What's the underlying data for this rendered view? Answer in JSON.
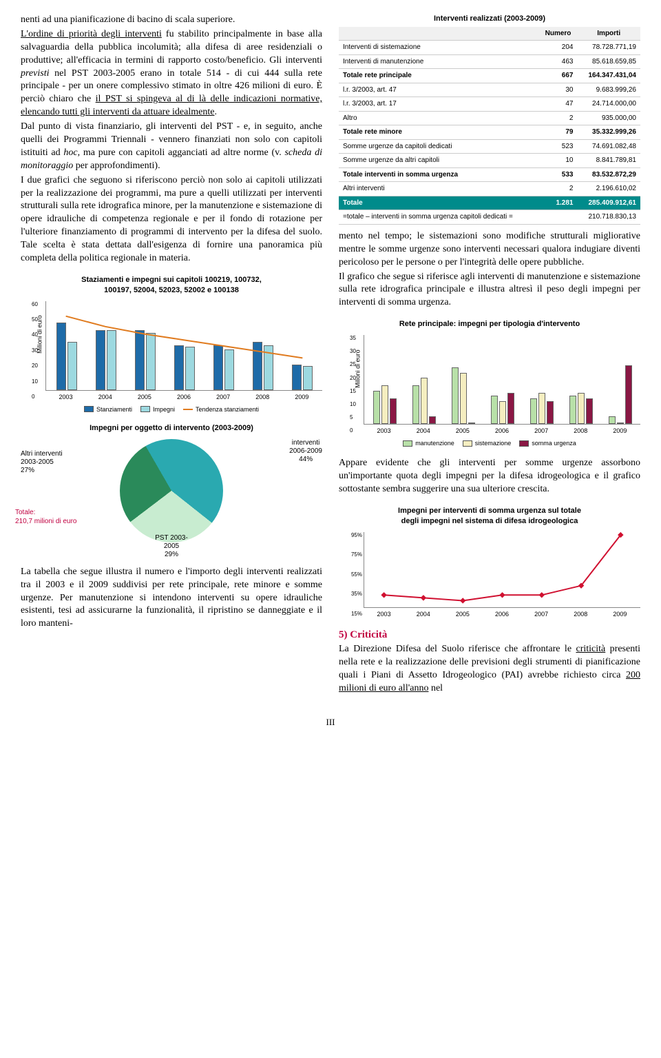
{
  "leftText": {
    "p1a": "nenti ad una pianificazione di bacino di scala superiore.",
    "p1b": "L'ordine di priorità degli interventi",
    "p1c": " fu stabilito principalmente in base alla salvaguardia della pubblica incolumità; alla difesa di aree residenziali o produttive; all'efficacia in termini di rapporto costo/beneficio. Gli interventi ",
    "p1d": "previsti",
    "p1e": " nel PST 2003-2005 erano in totale 514 - di cui 444 sulla rete principale - per un onere complessivo stimato in oltre 426 milioni di euro. È perciò chiaro che ",
    "p1f": "il PST si spingeva al di là delle indicazioni normative, elencando tutti gli interventi da attuare idealmente",
    "p1g": ".",
    "p2a": "Dal punto di vista finanziario, gli interventi del PST - e, in seguito, anche quelli dei Programmi Triennali - vennero finanziati non solo con capitoli istituiti ad ",
    "p2b": "hoc",
    "p2c": ", ma pure con capitoli agganciati ad altre norme (v. ",
    "p2d": "scheda di monitoraggio",
    "p2e": " per approfondimenti).",
    "p3": "I due grafici che seguono si riferiscono perciò non solo ai capitoli utilizzati per la realizzazione dei programmi, ma pure a quelli utilizzati per interventi strutturali sulla rete idrografica minore, per la manutenzione e sistemazione di opere idrauliche di competenza regionale e per il fondo di rotazione per l'ulteriore finanziamento di programmi di intervento per la difesa del suolo. Tale scelta è stata dettata dall'esigenza di fornire una panoramica più completa della politica regionale in materia.",
    "p4": "La tabella che segue illustra il numero e l'importo degli interventi realizzati tra il 2003 e il 2009 suddivisi per rete principale, rete minore e somme urgenze. Per manutenzione si intendono interventi su opere idrauliche esistenti, tesi ad assicurarne la funzionalità, il ripristino se danneggiate e il loro manteni-"
  },
  "chart1": {
    "title_l1": "Staziamenti e impegni sui capitoli 100219, 100732,",
    "title_l2": "100197, 52004, 52023, 52002 e 100138",
    "ylabel": "Milioni di euro",
    "ymax": 60,
    "yticks": [
      "0",
      "10",
      "20",
      "30",
      "40",
      "50",
      "60"
    ],
    "years": [
      "2003",
      "2004",
      "2005",
      "2006",
      "2007",
      "2008",
      "2009"
    ],
    "stanziamenti": [
      45,
      40,
      40,
      30,
      30,
      32,
      17
    ],
    "impegni": [
      32,
      40,
      38,
      29,
      27,
      30,
      16
    ],
    "trend": [
      50,
      43,
      38,
      34,
      30,
      26,
      22
    ],
    "colors": {
      "stanziamenti": "#1e6ba8",
      "impegni": "#9dd9e0",
      "trend": "#e07b1f"
    },
    "legend": {
      "a": "Stanziamenti",
      "b": "Impegni",
      "c": "Tendenza stanziamenti"
    }
  },
  "pie": {
    "title": "Impegni per oggetto di intervento (2003-2009)",
    "slices": [
      {
        "label_l1": "interventi",
        "label_l2": "2006-2009",
        "pct": "44%",
        "color": "#2aa9b0"
      },
      {
        "label_l1": "PST 2003-",
        "label_l2": "2005",
        "pct": "29%",
        "color": "#c8ecd0"
      },
      {
        "label_l1": "Altri interventi",
        "label_l2": "2003-2005",
        "pct": "27%",
        "color": "#2a8a5a"
      }
    ],
    "totale_l1": "Totale:",
    "totale_l2": "210,7 milioni di euro"
  },
  "table": {
    "caption": "Interventi realizzati (2003-2009)",
    "headers": [
      "",
      "Numero",
      "Importi"
    ],
    "rows": [
      {
        "cells": [
          "Interventi di sistemazione",
          "204",
          "78.728.771,19"
        ],
        "cls": ""
      },
      {
        "cells": [
          "Interventi di manutenzione",
          "463",
          "85.618.659,85"
        ],
        "cls": ""
      },
      {
        "cells": [
          "Totale rete principale",
          "667",
          "164.347.431,04"
        ],
        "cls": "bold"
      },
      {
        "cells": [
          "l.r. 3/2003, art. 47",
          "30",
          "9.683.999,26"
        ],
        "cls": ""
      },
      {
        "cells": [
          "l.r. 3/2003, art. 17",
          "47",
          "24.714.000,00"
        ],
        "cls": ""
      },
      {
        "cells": [
          "Altro",
          "2",
          "935.000,00"
        ],
        "cls": ""
      },
      {
        "cells": [
          "Totale rete minore",
          "79",
          "35.332.999,26"
        ],
        "cls": "bold"
      },
      {
        "cells": [
          "Somme urgenze da capitoli dedicati",
          "523",
          "74.691.082,48"
        ],
        "cls": ""
      },
      {
        "cells": [
          "Somme urgenze da altri capitoli",
          "10",
          "8.841.789,81"
        ],
        "cls": ""
      },
      {
        "cells": [
          "Totale interventi in somma urgenza",
          "533",
          "83.532.872,29"
        ],
        "cls": "bold"
      },
      {
        "cells": [
          "Altri interventi",
          "2",
          "2.196.610,02"
        ],
        "cls": ""
      },
      {
        "cells": [
          "Totale",
          "1.281",
          "285.409.912,61"
        ],
        "cls": "teal"
      },
      {
        "cells": [
          "=totale – interventi in somma urgenza capitoli dedicati =",
          "",
          "210.718.830,13"
        ],
        "cls": ""
      }
    ]
  },
  "rightText": {
    "p1": "mento nel tempo; le sistemazioni sono modifiche strutturali migliorative mentre le somme urgenze sono interventi necessari qualora indugiare diventi pericoloso per le persone o per l'integrità delle opere pubbliche.",
    "p2": "Il grafico che segue si riferisce agli interventi di manutenzione e sistemazione sulla rete idrografica principale e illustra altresì il peso degli impegni per interventi di somma urgenza."
  },
  "chart2": {
    "title": "Rete principale: impegni per tipologia d'intervento",
    "ylabel": "Milioni di euro",
    "ymax": 35,
    "yticks": [
      "0",
      "5",
      "10",
      "15",
      "20",
      "25",
      "30",
      "35"
    ],
    "years": [
      "2003",
      "2004",
      "2005",
      "2006",
      "2007",
      "2008",
      "2009"
    ],
    "manutenzione": [
      13,
      15,
      22,
      11,
      10,
      11,
      3
    ],
    "sistemazione": [
      15,
      18,
      20,
      9,
      12,
      12,
      0
    ],
    "somma_urgenza": [
      10,
      3,
      0,
      12,
      9,
      10,
      23
    ],
    "colors": {
      "manutenzione": "#b8e0a8",
      "sistemazione": "#f5eec0",
      "somma_urgenza": "#8a1744"
    },
    "legend": {
      "a": "manutenzione",
      "b": "sistemazione",
      "c": "somma urgenza"
    }
  },
  "rightText2": {
    "p3": "Appare evidente che gli interventi per somme urgenze assorbono un'importante quota degli impegni per la difesa idrogeologica e il grafico sottostante sembra suggerire una sua ulteriore crescita."
  },
  "chart3": {
    "title_l1": "Impegni per interventi di somma urgenza sul totale",
    "title_l2": "degli impegni nel sistema di difesa idrogeologica",
    "yticks": [
      "15%",
      "35%",
      "55%",
      "75%",
      "95%"
    ],
    "ymin": 15,
    "ymax": 95,
    "years": [
      "2003",
      "2004",
      "2005",
      "2006",
      "2007",
      "2008",
      "2009"
    ],
    "values": [
      28,
      25,
      22,
      28,
      28,
      38,
      92
    ],
    "color": "#d01030",
    "marker": "diamond"
  },
  "criticita": {
    "heading": "5) Criticità",
    "p_a": "La Direzione Difesa del Suolo riferisce che affrontare le ",
    "p_b": "criticità",
    "p_c": " presenti nella rete e la realizzazione delle previsioni degli strumenti di pianificazione quali i Piani di Assetto Idrogeologico (PAI) avrebbe richiesto circa ",
    "p_d": "200 milioni di euro all'anno",
    "p_e": " nel"
  },
  "pageNum": "III"
}
